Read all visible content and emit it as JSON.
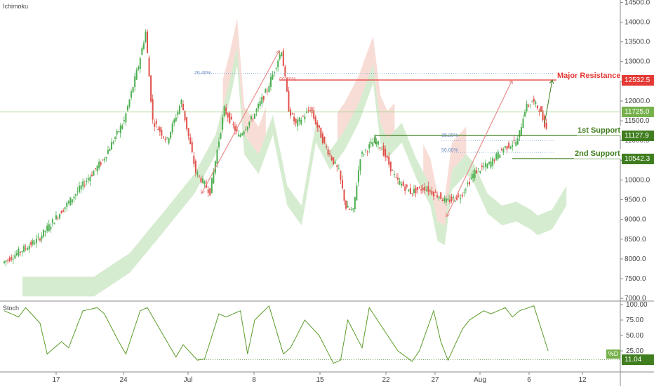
{
  "chart_data": {
    "type": "candlestick",
    "indicator_name": "Ichimoku",
    "stoch_name": "Stoch",
    "y_ticks": [
      "7000.0",
      "7500.0",
      "8000.0",
      "8500.0",
      "9000.0",
      "9500.0",
      "10000.0",
      "10500.0",
      "11000.0",
      "11500.0",
      "12000.0",
      "12500.0",
      "13000.0",
      "13500.0",
      "14000.0",
      "14500.0"
    ],
    "price_range": [
      6950,
      14560
    ],
    "x_ticks": [
      "17",
      "24",
      "Jul",
      "8",
      "15",
      "22",
      "27",
      "Aug",
      "6",
      "12"
    ],
    "stoch_ticks": [
      "100.00",
      "75.00",
      "50.00",
      "25.00"
    ],
    "stoch_range": [
      0,
      100
    ],
    "price_tags": [
      {
        "label": "12532.5",
        "value": 12532.5,
        "color": "#e53935"
      },
      {
        "label": "11725.0",
        "value": 11725.0,
        "color": "#76b14b"
      },
      {
        "label": "11127.9",
        "value": 11127.9,
        "color": "#3f7d1e"
      },
      {
        "label": "10542.3",
        "value": 10542.3,
        "color": "#3f7d1e"
      }
    ],
    "stoch_tag": {
      "label": "11.04",
      "value": 11.04,
      "color": "#3f7d1e"
    },
    "stoch_pct_label": "%D",
    "annotations": {
      "major_resistance": "Major Resistance",
      "first_support": "1st Support",
      "second_support": "2nd Support"
    },
    "fib_labels": [
      "76.40%",
      "00.00%",
      "38.20%",
      "50.00%"
    ],
    "price_swings": [
      {
        "day": 0,
        "price": 7900
      },
      {
        "day": 5,
        "price": 8500
      },
      {
        "day": 10,
        "price": 9600
      },
      {
        "day": 14,
        "price": 10500
      },
      {
        "day": 17,
        "price": 11500
      },
      {
        "day": 19,
        "price": 12900
      },
      {
        "day": 20,
        "price": 13750
      },
      {
        "day": 21,
        "price": 11500
      },
      {
        "day": 23,
        "price": 11000
      },
      {
        "day": 25,
        "price": 12000
      },
      {
        "day": 27,
        "price": 10200
      },
      {
        "day": 29,
        "price": 9700
      },
      {
        "day": 31,
        "price": 11800
      },
      {
        "day": 33,
        "price": 11100
      },
      {
        "day": 35,
        "price": 11600
      },
      {
        "day": 37,
        "price": 12300
      },
      {
        "day": 39,
        "price": 13300
      },
      {
        "day": 40,
        "price": 11800
      },
      {
        "day": 41,
        "price": 11400
      },
      {
        "day": 43,
        "price": 11800
      },
      {
        "day": 45,
        "price": 10900
      },
      {
        "day": 47,
        "price": 10200
      },
      {
        "day": 48,
        "price": 9300
      },
      {
        "day": 49,
        "price": 9200
      },
      {
        "day": 50,
        "price": 10600
      },
      {
        "day": 52,
        "price": 11000
      },
      {
        "day": 53,
        "price": 10800
      },
      {
        "day": 55,
        "price": 10000
      },
      {
        "day": 57,
        "price": 9700
      },
      {
        "day": 59,
        "price": 9800
      },
      {
        "day": 61,
        "price": 9600
      },
      {
        "day": 62,
        "price": 9450
      },
      {
        "day": 64,
        "price": 9600
      },
      {
        "day": 66,
        "price": 10200
      },
      {
        "day": 68,
        "price": 10400
      },
      {
        "day": 70,
        "price": 10800
      },
      {
        "day": 72,
        "price": 11000
      },
      {
        "day": 73,
        "price": 11800
      },
      {
        "day": 74,
        "price": 12000
      },
      {
        "day": 75,
        "price": 11800
      },
      {
        "day": 76,
        "price": 11300
      }
    ],
    "stoch_swings": [
      {
        "day": 0,
        "value": 90
      },
      {
        "day": 2,
        "value": 80
      },
      {
        "day": 3,
        "value": 95
      },
      {
        "day": 5,
        "value": 70
      },
      {
        "day": 6,
        "value": 20
      },
      {
        "day": 8,
        "value": 40
      },
      {
        "day": 9,
        "value": 30
      },
      {
        "day": 11,
        "value": 90
      },
      {
        "day": 13,
        "value": 95
      },
      {
        "day": 14,
        "value": 85
      },
      {
        "day": 16,
        "value": 40
      },
      {
        "day": 17,
        "value": 20
      },
      {
        "day": 19,
        "value": 90
      },
      {
        "day": 20,
        "value": 95
      },
      {
        "day": 22,
        "value": 55
      },
      {
        "day": 24,
        "value": 15
      },
      {
        "day": 25,
        "value": 35
      },
      {
        "day": 27,
        "value": 10
      },
      {
        "day": 28,
        "value": 12
      },
      {
        "day": 30,
        "value": 85
      },
      {
        "day": 31,
        "value": 80
      },
      {
        "day": 33,
        "value": 90
      },
      {
        "day": 34,
        "value": 20
      },
      {
        "day": 35,
        "value": 75
      },
      {
        "day": 37,
        "value": 98
      },
      {
        "day": 39,
        "value": 20
      },
      {
        "day": 40,
        "value": 30
      },
      {
        "day": 42,
        "value": 75
      },
      {
        "day": 44,
        "value": 50
      },
      {
        "day": 46,
        "value": 5
      },
      {
        "day": 47,
        "value": 10
      },
      {
        "day": 48,
        "value": 75
      },
      {
        "day": 50,
        "value": 30
      },
      {
        "day": 51,
        "value": 95
      },
      {
        "day": 53,
        "value": 60
      },
      {
        "day": 55,
        "value": 25
      },
      {
        "day": 57,
        "value": 8
      },
      {
        "day": 58,
        "value": 25
      },
      {
        "day": 60,
        "value": 90
      },
      {
        "day": 61,
        "value": 40
      },
      {
        "day": 62,
        "value": 10
      },
      {
        "day": 64,
        "value": 60
      },
      {
        "day": 65,
        "value": 75
      },
      {
        "day": 67,
        "value": 90
      },
      {
        "day": 68,
        "value": 85
      },
      {
        "day": 70,
        "value": 95
      },
      {
        "day": 71,
        "value": 80
      },
      {
        "day": 72,
        "value": 90
      },
      {
        "day": 74,
        "value": 98
      },
      {
        "day": 76,
        "value": 25
      }
    ]
  }
}
